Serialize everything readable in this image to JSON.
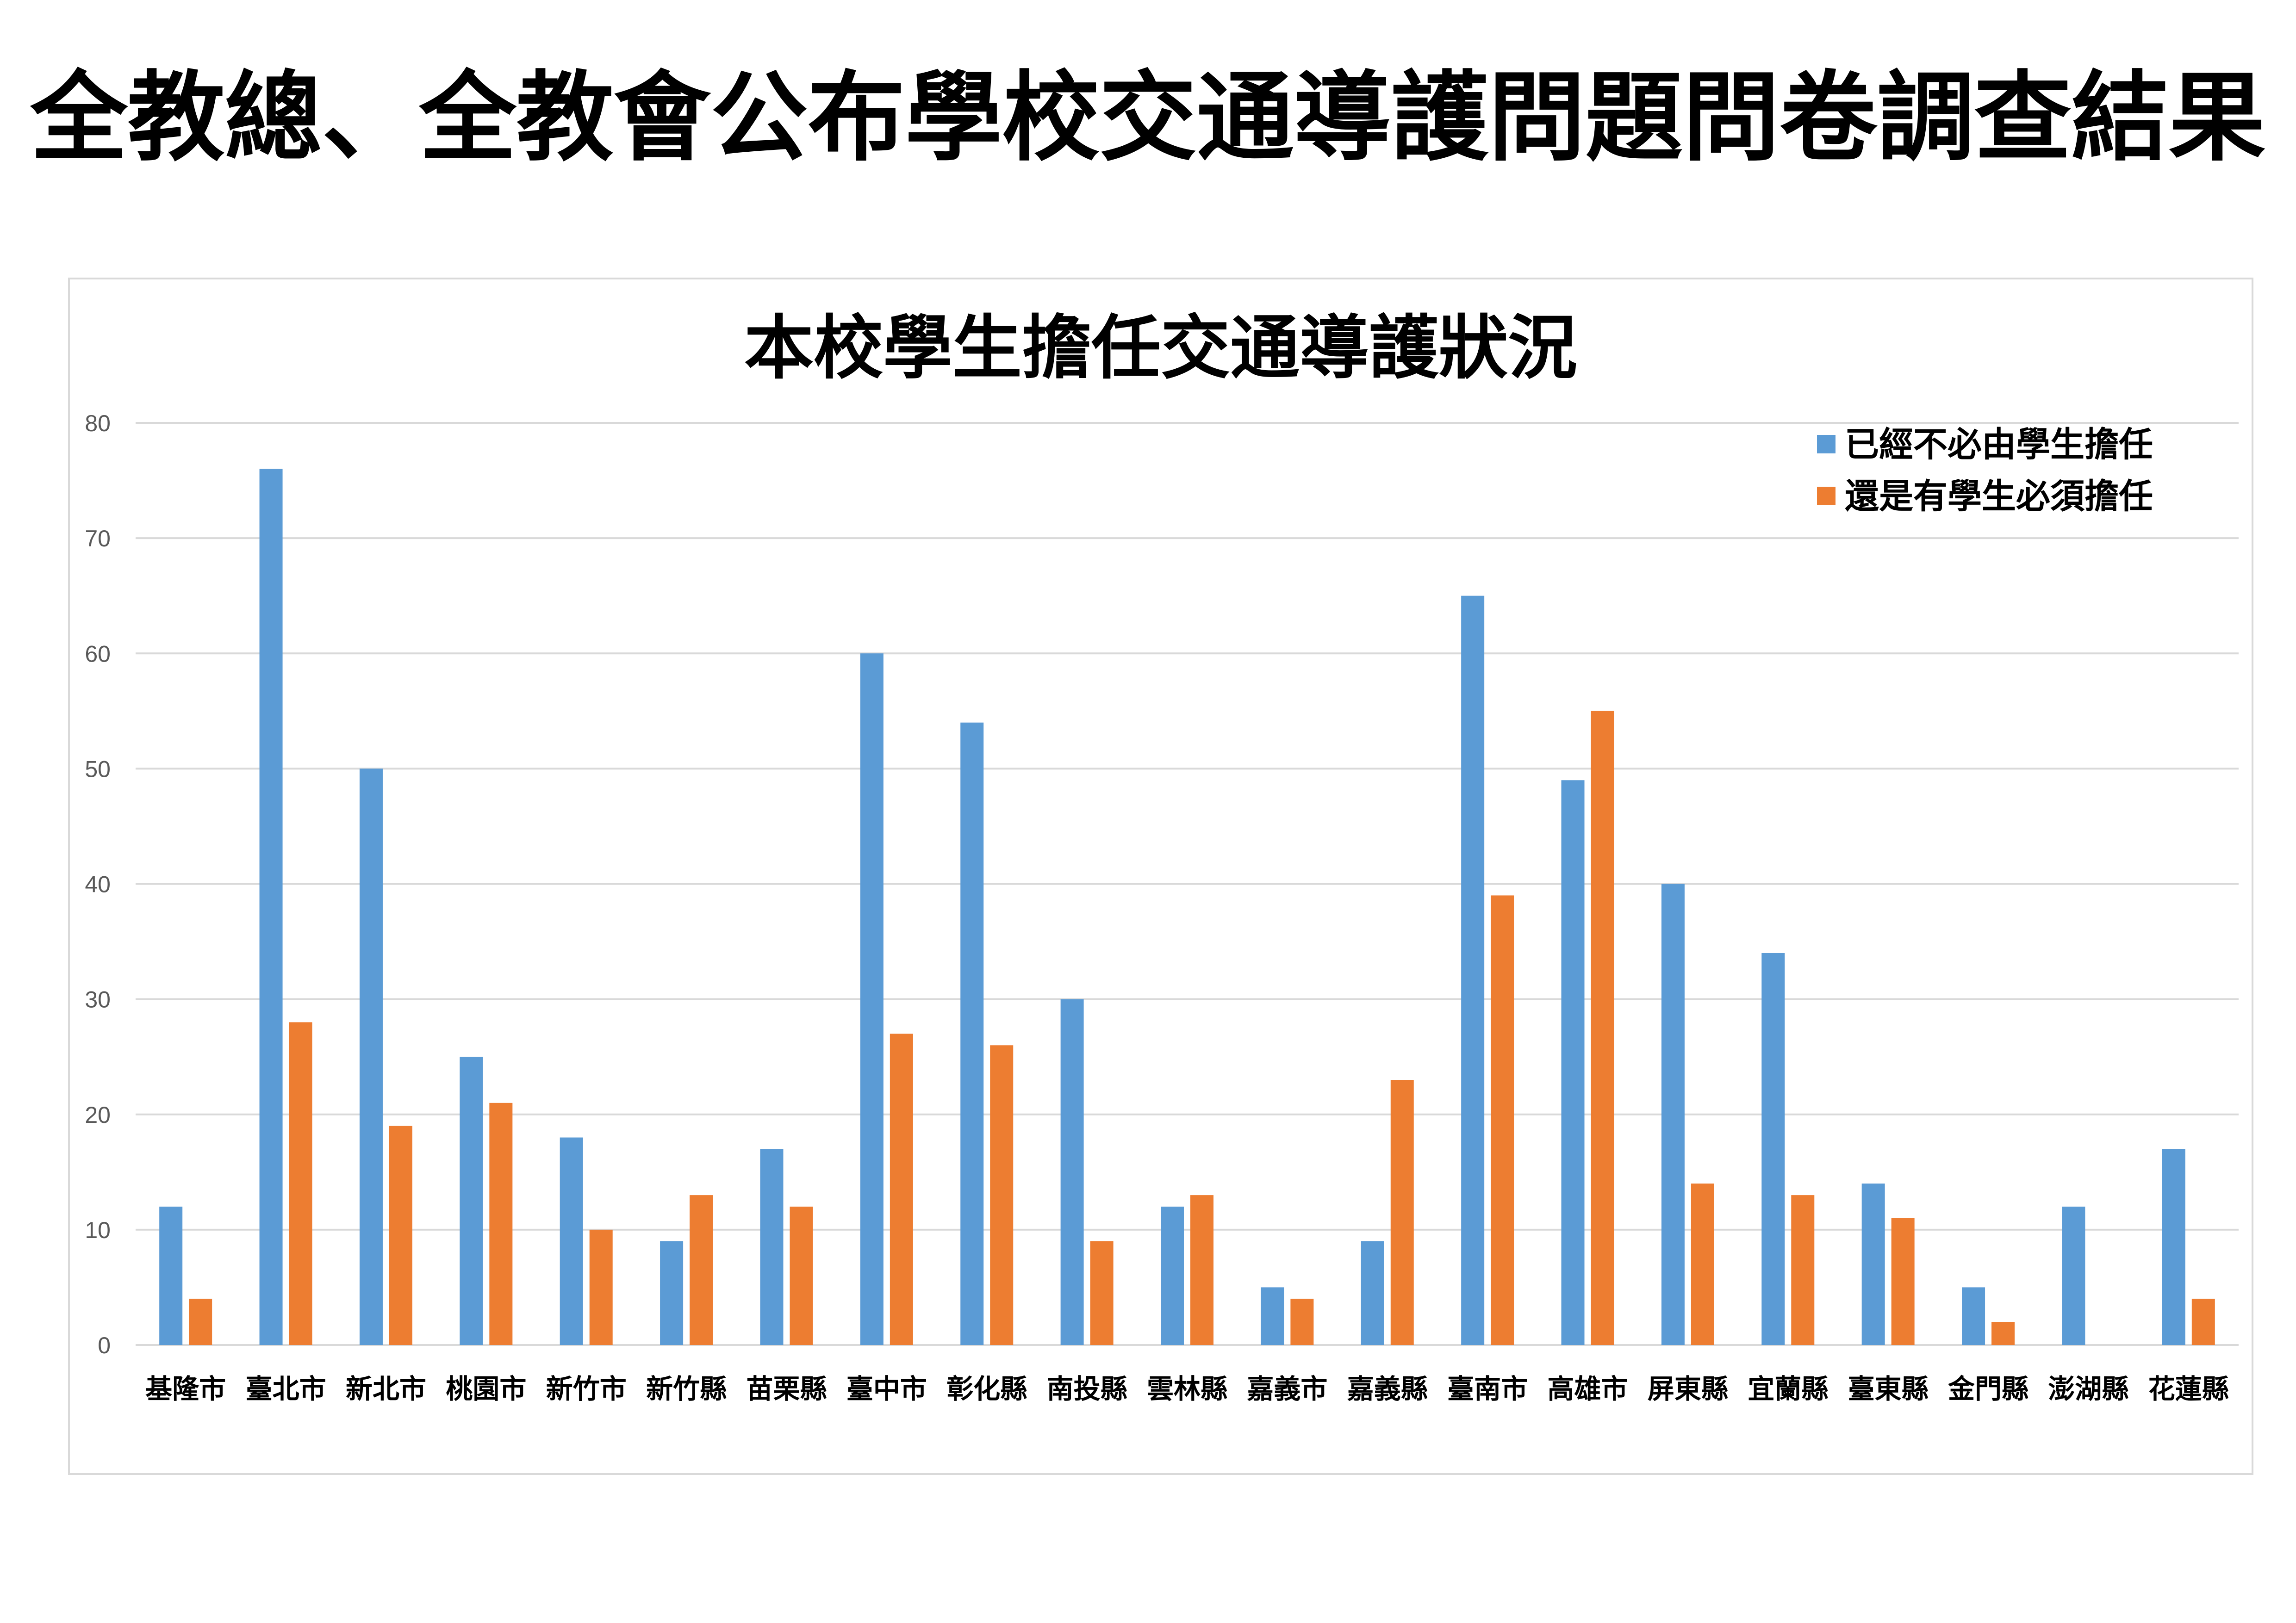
{
  "page": {
    "title": "全教總、全教會公布學校交通導護問題問卷調查結果"
  },
  "colors": {
    "series_1": "#5b9bd5",
    "series_2": "#ed7d31",
    "gridline": "#d9d9d9",
    "tick_text": "#595959"
  },
  "chart_data": {
    "type": "bar",
    "title": "本校學生擔任交通導護狀況",
    "xlabel": "",
    "ylabel": "",
    "ylim": [
      0,
      80
    ],
    "yticks": [
      0,
      10,
      20,
      30,
      40,
      50,
      60,
      70,
      80
    ],
    "grid": true,
    "legend_position": "top-right",
    "categories": [
      "基隆市",
      "臺北市",
      "新北市",
      "桃園市",
      "新竹市",
      "新竹縣",
      "苗栗縣",
      "臺中市",
      "彰化縣",
      "南投縣",
      "雲林縣",
      "嘉義市",
      "嘉義縣",
      "臺南市",
      "高雄市",
      "屏東縣",
      "宜蘭縣",
      "臺東縣",
      "金門縣",
      "澎湖縣",
      "花蓮縣"
    ],
    "series": [
      {
        "name": "已經不必由學生擔任",
        "color": "#5b9bd5",
        "values": [
          12,
          76,
          50,
          25,
          18,
          9,
          17,
          60,
          54,
          30,
          12,
          5,
          9,
          65,
          49,
          40,
          34,
          14,
          5,
          12,
          17
        ]
      },
      {
        "name": "還是有學生必須擔任",
        "color": "#ed7d31",
        "values": [
          4,
          28,
          19,
          21,
          10,
          13,
          12,
          27,
          26,
          9,
          13,
          4,
          23,
          39,
          55,
          14,
          13,
          11,
          2,
          0,
          4
        ]
      }
    ]
  }
}
